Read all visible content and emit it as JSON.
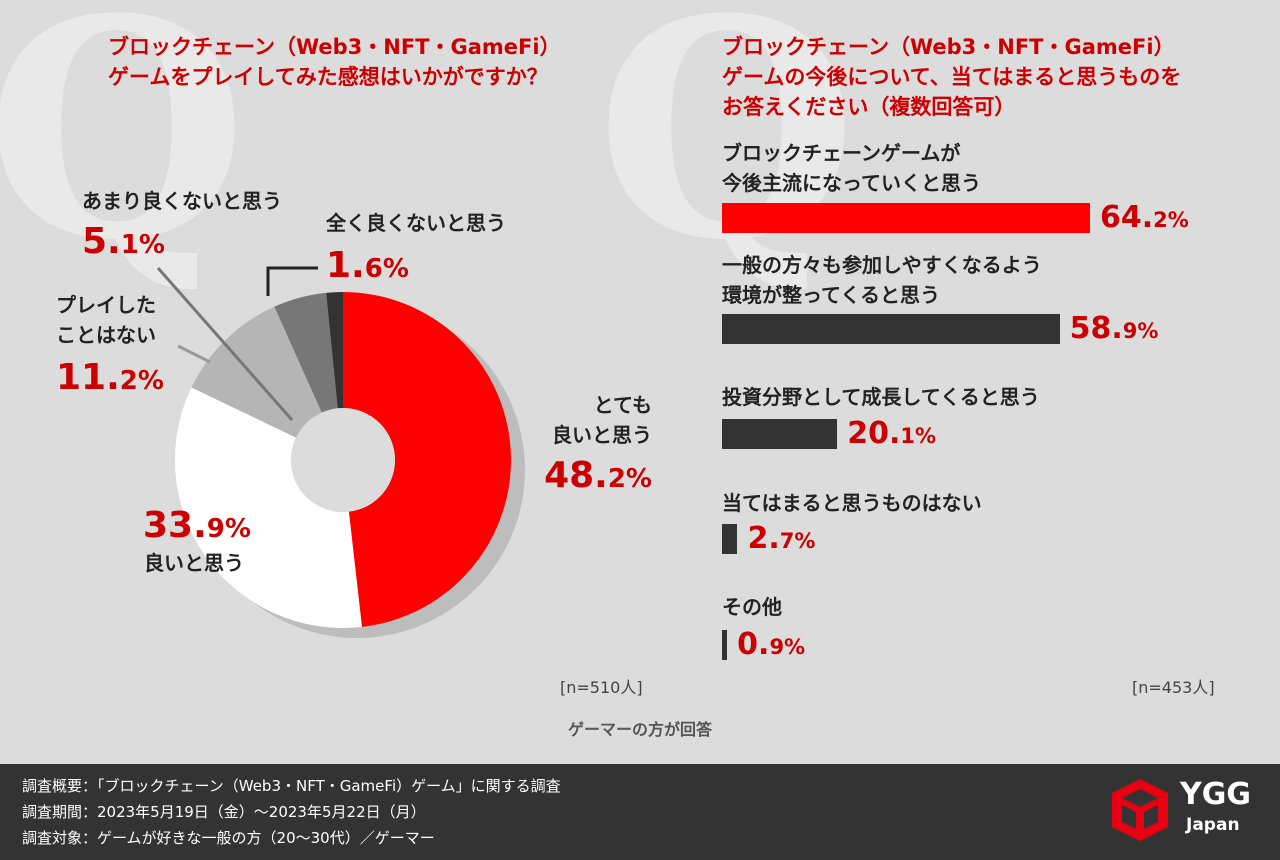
{
  "chart_data": [
    {
      "type": "pie",
      "title": "ブロックチェーン（Web3・NFT・GameFi）ゲームをプレイしてみた感想はいかがですか？",
      "slices": [
        {
          "label": "とても良いと思う",
          "value": 48.2,
          "color": "#ff0000"
        },
        {
          "label": "良いと思う",
          "value": 33.9,
          "color": "#ffffff"
        },
        {
          "label": "プレイしたことはない",
          "value": 11.2,
          "color": "#b5b5b5"
        },
        {
          "label": "あまり良くないと思う",
          "value": 5.1,
          "color": "#777777"
        },
        {
          "label": "全く良くないと思う",
          "value": 1.6,
          "color": "#333333"
        }
      ],
      "n": "[n=510人]"
    },
    {
      "type": "bar",
      "orientation": "horizontal",
      "title": "ブロックチェーン（Web3・NFT・GameFi）ゲームの今後について、当てはまると思うものをお答えください（複数回答可）",
      "categories": [
        "ブロックチェーンゲームが今後主流になっていくと思う",
        "一般の方々も参加しやすくなるよう環境が整ってくると思う",
        "投資分野として成長してくると思う",
        "当てはまると思うものはない",
        "その他"
      ],
      "values": [
        64.2,
        58.9,
        20.1,
        2.7,
        0.9
      ],
      "colors": [
        "#ff0000",
        "#333333",
        "#333333",
        "#333333",
        "#333333"
      ],
      "n": "[n=453人]"
    }
  ],
  "left": {
    "title_lines": [
      "ブロックチェーン（Web3・NFT・GameFi）",
      "ゲームをプレイしてみた感想はいかがですか？"
    ],
    "labels": {
      "very_good": [
        "とても",
        "良いと思う"
      ],
      "very_good_int": "48.",
      "very_good_dec": "2%",
      "good": "良いと思う",
      "good_int": "33.",
      "good_dec": "9%",
      "not_played": [
        "プレイした",
        "ことはない"
      ],
      "not_played_int": "11.",
      "not_played_dec": "2%",
      "not_good": "あまり良くないと思う",
      "not_good_int": "5.",
      "not_good_dec": "1%",
      "bad": "全く良くないと思う",
      "bad_int": "1.",
      "bad_dec": "6%"
    },
    "n": "[n=510人]"
  },
  "right": {
    "title_lines": [
      "ブロックチェーン（Web3・NFT・GameFi）",
      "ゲームの今後について、当てはまると思うものを",
      "お答えください（複数回答可）"
    ],
    "bars": [
      {
        "lines": [
          "ブロックチェーンゲームが",
          "今後主流になっていくと思う"
        ],
        "int": "64.",
        "dec": "2%"
      },
      {
        "lines": [
          "一般の方々も参加しやすくなるよう",
          "環境が整ってくると思う"
        ],
        "int": "58.",
        "dec": "9%"
      },
      {
        "lines": [
          "投資分野として成長してくると思う"
        ],
        "int": "20.",
        "dec": "1%"
      },
      {
        "lines": [
          "当てはまると思うものはない"
        ],
        "int": "2.",
        "dec": "7%"
      },
      {
        "lines": [
          "その他"
        ],
        "int": "0.",
        "dec": "9%"
      }
    ],
    "n": "[n=453人]"
  },
  "bg_letters": [
    "Q",
    "Q"
  ],
  "answerer": "ゲーマーの方が回答",
  "footer": {
    "lines": [
      "調査概要：「ブロックチェーン（Web3・NFT・GameFi）ゲーム」に関する調査",
      "調査期間：2023年5月19日（金）～2023年5月22日（月）",
      "調査対象：ゲームが好きな一般の方（20～30代）／ゲーマー"
    ]
  },
  "logo": {
    "name": "YGG",
    "sub": "Japan"
  }
}
